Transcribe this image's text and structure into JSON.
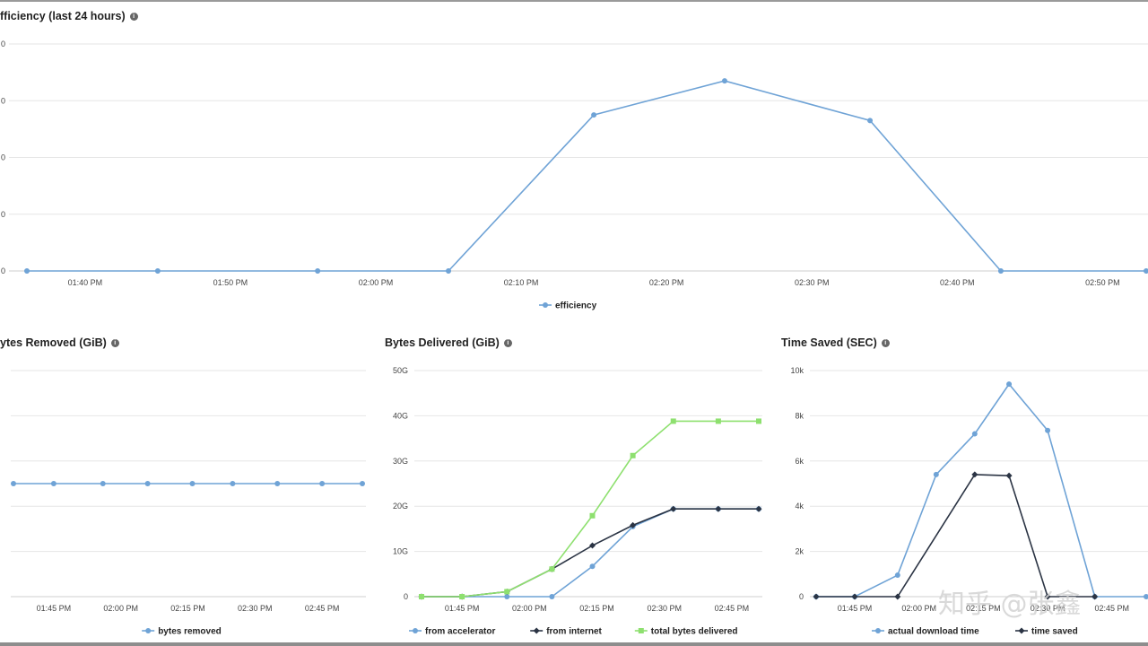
{
  "titles": {
    "efficiency": "fficiency (last 24 hours)",
    "bytes_removed": "ytes Removed (GiB)",
    "bytes_delivered": "Bytes Delivered (GiB)",
    "time_saved": "Time Saved (SEC)"
  },
  "info_glyph": "i",
  "watermark": "知乎 @张鑫",
  "colors": {
    "blue": "#6fa3d6",
    "dark": "#2b3444",
    "green": "#8ee06f",
    "grid": "#e6e6e6"
  },
  "chart_data": [
    {
      "id": "efficiency",
      "type": "line",
      "title": "fficiency (last 24 hours)",
      "y_tick_labels": [
        "0",
        "0",
        "0",
        "0",
        "0"
      ],
      "x_tick_labels": [
        "01:40 PM",
        "01:50 PM",
        "02:00 PM",
        "02:10 PM",
        "02:20 PM",
        "02:30 PM",
        "02:40 PM",
        "02:50 PM"
      ],
      "x_ticks_min": [
        100,
        110,
        120,
        130,
        140,
        150,
        160,
        170
      ],
      "xlim": [
        95,
        173
      ],
      "ylim": [
        0,
        4
      ],
      "grid": true,
      "legend_position": "bottom-center",
      "series": [
        {
          "name": "efficiency",
          "color": "#6fa3d6",
          "marker": "circle",
          "x": [
            96,
            105,
            116,
            125,
            135,
            144,
            154,
            163,
            173
          ],
          "y": [
            0,
            0,
            0,
            0,
            2.75,
            3.35,
            2.65,
            0,
            0
          ]
        }
      ]
    },
    {
      "id": "bytes_removed",
      "type": "line",
      "title": "ytes Removed (GiB)",
      "x_tick_labels": [
        "01:45 PM",
        "02:00 PM",
        "02:15 PM",
        "02:30 PM",
        "02:45 PM"
      ],
      "x_ticks_min": [
        105,
        120,
        135,
        150,
        165
      ],
      "xlim": [
        95,
        174
      ],
      "ylim": [
        -1,
        1
      ],
      "grid": true,
      "legend_position": "bottom-center",
      "series": [
        {
          "name": "bytes removed",
          "color": "#6fa3d6",
          "marker": "circle",
          "x": [
            96,
            105,
            116,
            126,
            136,
            145,
            155,
            165,
            174
          ],
          "y": [
            0,
            0,
            0,
            0,
            0,
            0,
            0,
            0,
            0
          ]
        }
      ]
    },
    {
      "id": "bytes_delivered",
      "type": "line",
      "title": "Bytes Delivered (GiB)",
      "y_ticks": [
        0,
        10,
        20,
        30,
        40,
        50
      ],
      "y_tick_labels": [
        "0",
        "10G",
        "20G",
        "30G",
        "40G",
        "50G"
      ],
      "x_tick_labels": [
        "01:45 PM",
        "02:00 PM",
        "02:15 PM",
        "02:30 PM",
        "02:45 PM"
      ],
      "x_ticks_min": [
        105,
        120,
        135,
        150,
        165
      ],
      "xlim": [
        95,
        174
      ],
      "ylim": [
        0,
        50
      ],
      "grid": true,
      "legend_position": "bottom-center",
      "series": [
        {
          "name": "from accelerator",
          "color": "#6fa3d6",
          "marker": "circle",
          "x": [
            96,
            105,
            115,
            125,
            134,
            143,
            152,
            162,
            171
          ],
          "y": [
            0,
            0,
            0,
            0,
            6.7,
            15.5,
            19.4,
            19.4,
            19.4
          ]
        },
        {
          "name": "from internet",
          "color": "#2b3444",
          "marker": "diamond",
          "x": [
            96,
            105,
            115,
            125,
            134,
            143,
            152,
            162,
            171
          ],
          "y": [
            0,
            0,
            1.1,
            6.1,
            11.3,
            15.8,
            19.4,
            19.4,
            19.4
          ]
        },
        {
          "name": "total bytes delivered",
          "color": "#8ee06f",
          "marker": "square",
          "x": [
            96,
            105,
            115,
            125,
            134,
            143,
            152,
            162,
            171
          ],
          "y": [
            0,
            0,
            1.1,
            6.1,
            17.9,
            31.2,
            38.8,
            38.8,
            38.8
          ]
        }
      ]
    },
    {
      "id": "time_saved",
      "type": "line",
      "title": "Time Saved (SEC)",
      "y_ticks": [
        0,
        2000,
        4000,
        6000,
        8000,
        10000
      ],
      "y_tick_labels": [
        "0",
        "2k",
        "4k",
        "6k",
        "8k",
        "10k"
      ],
      "x_tick_labels": [
        "01:45 PM",
        "02:00 PM",
        "02:15 PM",
        "02:30 PM",
        "02:45 PM"
      ],
      "x_ticks_min": [
        105,
        120,
        135,
        150,
        165
      ],
      "xlim": [
        95,
        173
      ],
      "ylim": [
        0,
        10000
      ],
      "grid": true,
      "legend_position": "bottom-center",
      "series": [
        {
          "name": "actual download time",
          "color": "#6fa3d6",
          "marker": "circle",
          "x": [
            96,
            105,
            115,
            124,
            133,
            141,
            150,
            161,
            173
          ],
          "y": [
            0,
            0,
            950,
            5400,
            7200,
            9400,
            7350,
            0,
            0
          ]
        },
        {
          "name": "time saved",
          "color": "#2b3444",
          "marker": "diamond",
          "x": [
            96,
            105,
            115,
            133,
            141,
            150,
            161
          ],
          "y": [
            0,
            0,
            0,
            5400,
            5350,
            0,
            0
          ]
        }
      ]
    }
  ]
}
